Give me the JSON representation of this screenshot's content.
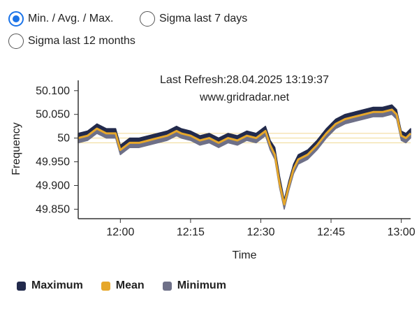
{
  "options": [
    {
      "label": "Min. / Avg. / Max.",
      "selected": true
    },
    {
      "label": "Sigma last 7 days",
      "selected": false
    },
    {
      "label": "Sigma last 12 months",
      "selected": false
    }
  ],
  "colors": {
    "maximum": "#222a4c",
    "mean": "#e6a72a",
    "minimum": "#6e7088",
    "sigma_lines": "#f0d890",
    "radio_selected": "#1a73e8"
  },
  "chart_data": {
    "type": "area",
    "title": "Last Refresh:28.04.2025 13:19:37",
    "subtitle": "www.gridradar.net",
    "xlabel": "Time",
    "ylabel": "Frequency",
    "xlim": [
      "11:51",
      "13:02"
    ],
    "ylim": [
      49.83,
      50.11
    ],
    "x_ticks": [
      "12:00",
      "12:15",
      "12:30",
      "12:45",
      "13:00"
    ],
    "y_ticks": [
      {
        "value": 50.1,
        "label": "50.100"
      },
      {
        "value": 50.05,
        "label": "50.050"
      },
      {
        "value": 50.0,
        "label": "50"
      },
      {
        "value": 49.95,
        "label": "49.950"
      },
      {
        "value": 49.9,
        "label": "49.900"
      },
      {
        "value": 49.85,
        "label": "49.850"
      }
    ],
    "reference_lines": [
      50.01,
      50.0,
      49.99
    ],
    "x": [
      "11:51",
      "11:53",
      "11:55",
      "11:57",
      "11:59",
      "12:00",
      "12:02",
      "12:04",
      "12:06",
      "12:08",
      "12:10",
      "12:12",
      "12:13",
      "12:15",
      "12:17",
      "12:19",
      "12:21",
      "12:23",
      "12:25",
      "12:27",
      "12:29",
      "12:31",
      "12:32",
      "12:33",
      "12:34",
      "12:35",
      "12:36",
      "12:37",
      "12:38",
      "12:40",
      "12:42",
      "12:44",
      "12:46",
      "12:48",
      "12:50",
      "12:52",
      "12:54",
      "12:56",
      "12:58",
      "12:59",
      "13:00",
      "13:01",
      "13:02"
    ],
    "series": [
      {
        "name": "Maximum",
        "values": [
          50.01,
          50.015,
          50.03,
          50.02,
          50.02,
          49.985,
          50.0,
          50.0,
          50.005,
          50.01,
          50.015,
          50.025,
          50.02,
          50.015,
          50.005,
          50.01,
          50.0,
          50.01,
          50.005,
          50.015,
          50.01,
          50.025,
          49.995,
          49.98,
          49.92,
          49.87,
          49.91,
          49.945,
          49.965,
          49.975,
          49.995,
          50.02,
          50.04,
          50.05,
          50.055,
          50.06,
          50.065,
          50.065,
          50.07,
          50.06,
          50.015,
          50.01,
          50.02
        ]
      },
      {
        "name": "Mean",
        "values": [
          50.0,
          50.005,
          50.02,
          50.01,
          50.01,
          49.975,
          49.99,
          49.99,
          49.995,
          50.0,
          50.005,
          50.015,
          50.01,
          50.005,
          49.995,
          50.0,
          49.99,
          50.0,
          49.995,
          50.005,
          50.0,
          50.015,
          49.985,
          49.965,
          49.905,
          49.86,
          49.9,
          49.935,
          49.955,
          49.965,
          49.985,
          50.01,
          50.03,
          50.04,
          50.045,
          50.05,
          50.055,
          50.055,
          50.06,
          50.05,
          50.005,
          50.0,
          50.01
        ]
      },
      {
        "name": "Minimum",
        "values": [
          49.99,
          49.995,
          50.01,
          50.0,
          50.0,
          49.965,
          49.98,
          49.98,
          49.985,
          49.99,
          49.995,
          50.005,
          50.0,
          49.995,
          49.985,
          49.99,
          49.98,
          49.99,
          49.985,
          49.995,
          49.99,
          50.005,
          49.975,
          49.955,
          49.895,
          49.85,
          49.89,
          49.925,
          49.945,
          49.955,
          49.975,
          50.0,
          50.02,
          50.03,
          50.035,
          50.04,
          50.045,
          50.045,
          50.05,
          50.04,
          49.995,
          49.99,
          50.0
        ]
      }
    ],
    "legend_position": "bottom-left",
    "grid": false
  }
}
